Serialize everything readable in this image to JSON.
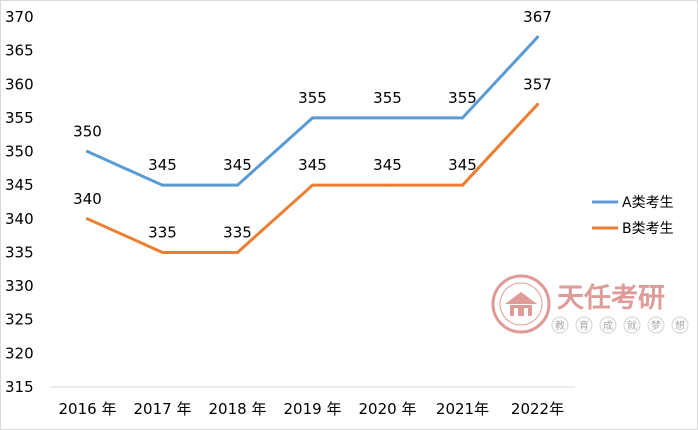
{
  "chart_data": {
    "type": "line",
    "categories": [
      "2016 年",
      "2017 年",
      "2018 年",
      "2019 年",
      "2020 年",
      "2021年",
      "2022年"
    ],
    "series": [
      {
        "name": "A类考生",
        "values": [
          350,
          345,
          345,
          355,
          355,
          355,
          367
        ],
        "color": "#5b9bd5"
      },
      {
        "name": "B类考生",
        "values": [
          340,
          335,
          335,
          345,
          345,
          345,
          357
        ],
        "color": "#ed7d31"
      }
    ],
    "ylim": [
      315,
      370
    ],
    "yticks": [
      315,
      320,
      325,
      330,
      335,
      340,
      345,
      350,
      355,
      360,
      365,
      370
    ],
    "title": "",
    "xlabel": "",
    "ylabel": "",
    "grid": false,
    "legend_position": "right"
  },
  "watermark": {
    "title": "天任考研",
    "subtitle": [
      "教",
      "育",
      "成",
      "就",
      "梦",
      "想"
    ],
    "color": "#c0504d"
  }
}
